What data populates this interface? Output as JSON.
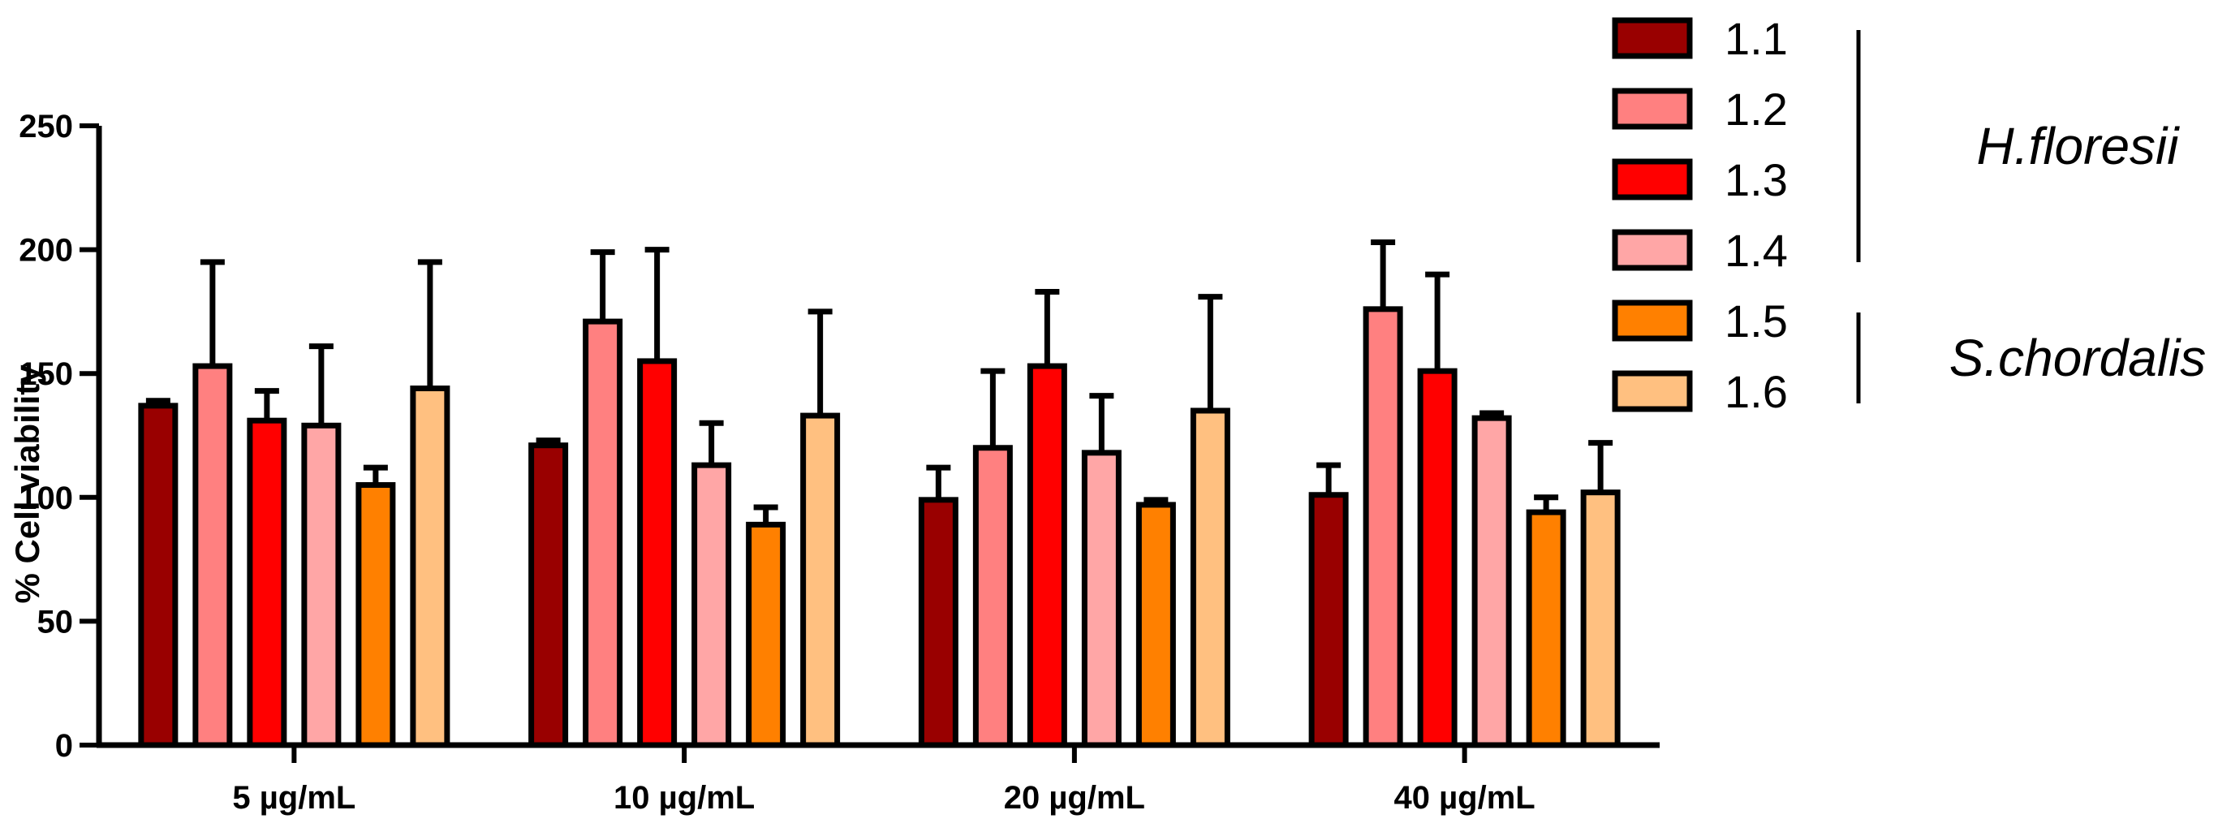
{
  "chart_data": {
    "type": "bar",
    "title": "",
    "xlabel": "",
    "ylabel": "% Cell viability",
    "ylim": [
      0,
      250
    ],
    "yticks": [
      0,
      50,
      100,
      150,
      200,
      250
    ],
    "categories": [
      "5 µg/mL",
      "10 µg/mL",
      "20 µg/mL",
      "40 µg/mL"
    ],
    "series": [
      {
        "name": "1.1",
        "color": "#990000",
        "values": [
          137,
          121,
          99,
          101
        ],
        "errors": [
          2,
          2,
          13,
          12
        ]
      },
      {
        "name": "1.2",
        "color": "#FF8080",
        "values": [
          153,
          171,
          120,
          176
        ],
        "errors": [
          42,
          28,
          31,
          27
        ]
      },
      {
        "name": "1.3",
        "color": "#FF0000",
        "values": [
          131,
          155,
          153,
          151
        ],
        "errors": [
          12,
          45,
          30,
          39
        ]
      },
      {
        "name": "1.4",
        "color": "#FFA6A6",
        "values": [
          129,
          113,
          118,
          132
        ],
        "errors": [
          32,
          17,
          23,
          2
        ]
      },
      {
        "name": "1.5",
        "color": "#FF8000",
        "values": [
          105,
          89,
          97,
          94
        ],
        "errors": [
          7,
          7,
          2,
          6
        ]
      },
      {
        "name": "1.6",
        "color": "#FFC080",
        "values": [
          144,
          133,
          135,
          102
        ],
        "errors": [
          51,
          42,
          46,
          20
        ]
      }
    ],
    "legend": {
      "placement": "right",
      "groups": [
        {
          "label": "H.floresii",
          "series": [
            "1.1",
            "1.2",
            "1.3",
            "1.4"
          ]
        },
        {
          "label": "S.chordalis",
          "series": [
            "1.5",
            "1.6"
          ]
        }
      ]
    },
    "grid": false
  }
}
